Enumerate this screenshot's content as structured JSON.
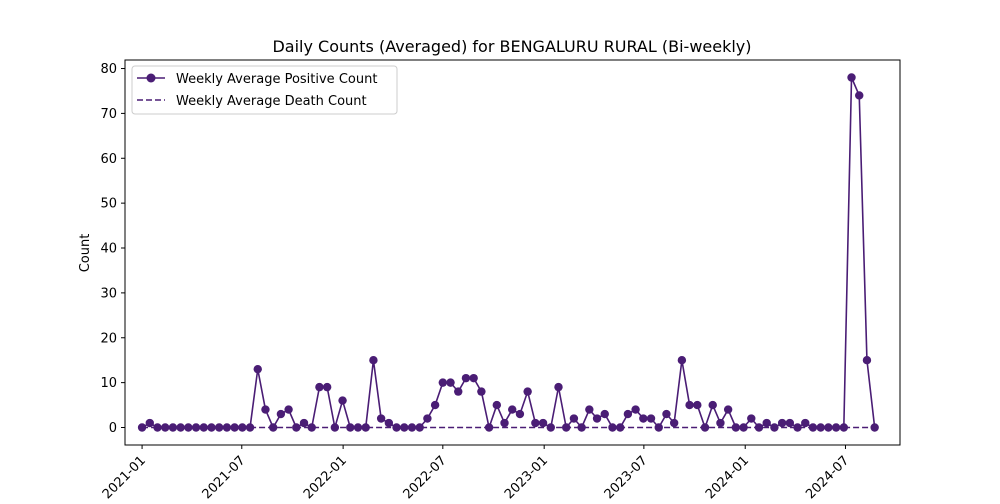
{
  "chart_data": {
    "type": "line",
    "title": "Daily Counts (Averaged) for BENGALURU RURAL (Bi-weekly)",
    "xlabel": "",
    "ylabel": "Count",
    "xlim": [
      "2020-12-01",
      "2024-10-08"
    ],
    "ylim": [
      -3.9,
      81.9
    ],
    "x_ticks": [
      "2021-01",
      "2021-07",
      "2022-01",
      "2022-07",
      "2023-01",
      "2023-07",
      "2024-01",
      "2024-07"
    ],
    "y_ticks": [
      0,
      10,
      20,
      30,
      40,
      50,
      60,
      70,
      80
    ],
    "grid": false,
    "legend_position": "upper-left",
    "line_color": "#4a1d75",
    "start_date": "2021-01-01",
    "step_days": 14,
    "series": [
      {
        "name": "Weekly Average Positive Count",
        "style": "solid-marker",
        "values": [
          0,
          1,
          0,
          0,
          0,
          0,
          0,
          0,
          0,
          0,
          0,
          0,
          0,
          0,
          0,
          13,
          4,
          0,
          3,
          4,
          0,
          1,
          0,
          9,
          9,
          0,
          6,
          0,
          0,
          0,
          15,
          2,
          1,
          0,
          0,
          0,
          0,
          2,
          5,
          10,
          10,
          8,
          11,
          11,
          8,
          0,
          5,
          1,
          4,
          3,
          8,
          1,
          1,
          0,
          9,
          0,
          2,
          0,
          4,
          2,
          3,
          0,
          0,
          3,
          4,
          2,
          2,
          0,
          3,
          1,
          15,
          5,
          5,
          0,
          5,
          1,
          4,
          0,
          0,
          2,
          0,
          1,
          0,
          1,
          1,
          0,
          1,
          0,
          0,
          0,
          0,
          0,
          78,
          74,
          15,
          0
        ]
      },
      {
        "name": "Weekly Average Death Count",
        "style": "dashed",
        "values": [
          0,
          0,
          0,
          0,
          0,
          0,
          0,
          0,
          0,
          0,
          0,
          0,
          0,
          0,
          0,
          0,
          0,
          0,
          0,
          0,
          0,
          0,
          0,
          0,
          0,
          0,
          0,
          0,
          0,
          0,
          0,
          0,
          0,
          0,
          0,
          0,
          0,
          0,
          0,
          0,
          0,
          0,
          0,
          0,
          0,
          0,
          0,
          0,
          0,
          0,
          0,
          0,
          0,
          0,
          0,
          0,
          0,
          0,
          0,
          0,
          0,
          0,
          0,
          0,
          0,
          0,
          0,
          0,
          0,
          0,
          0,
          0,
          0,
          0,
          0,
          0,
          0,
          0,
          0,
          0,
          0,
          0,
          0,
          0,
          0,
          0,
          0,
          0,
          0,
          0,
          0,
          0,
          0,
          0,
          0,
          0
        ]
      }
    ]
  }
}
